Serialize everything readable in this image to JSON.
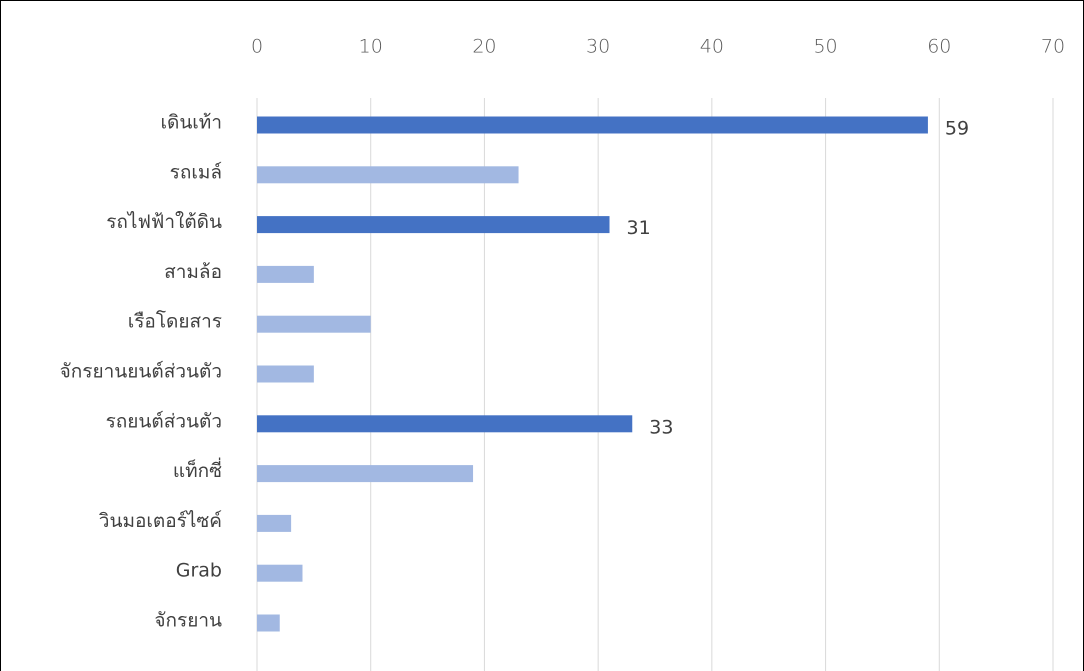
{
  "chart_data": {
    "type": "hbar",
    "categories": [
      "เดินเท้า",
      "รถเมล์",
      "รถไฟฟ้าใต้ดิน",
      "สามล้อ",
      "เรือโดยสาร",
      "จักรยานยนต์ส่วนตัว",
      "รถยนต์ส่วนตัว",
      "แท็กซี่",
      "วินมอเตอร์ไซค์",
      "Grab",
      "จักรยาน"
    ],
    "values": [
      59,
      23,
      31,
      5,
      10,
      5,
      33,
      19,
      3,
      4,
      2
    ],
    "colors": [
      "#4472c4",
      "#a2b8e2",
      "#4472c4",
      "#a2b8e2",
      "#a2b8e2",
      "#a2b8e2",
      "#4472c4",
      "#a2b8e2",
      "#a2b8e2",
      "#a2b8e2",
      "#a2b8e2"
    ],
    "show_labels": [
      true,
      false,
      true,
      false,
      false,
      false,
      true,
      false,
      false,
      false,
      false
    ],
    "xlim": [
      0,
      70
    ],
    "xticks": [
      0,
      10,
      20,
      30,
      40,
      50,
      60,
      70
    ],
    "grid": true,
    "xaxis_position": "top"
  }
}
